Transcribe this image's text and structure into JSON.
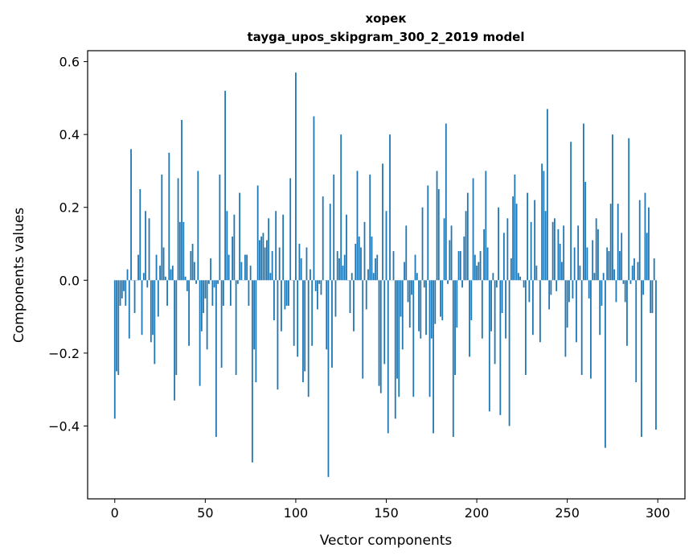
{
  "chart_data": {
    "type": "bar",
    "title": "хорек",
    "subtitle": "tayga_upos_skipgram_300_2_2019 model",
    "xlabel": "Vector components",
    "ylabel": "Components values",
    "xlim": [
      -15,
      315
    ],
    "ylim": [
      -0.6,
      0.63
    ],
    "xticks": [
      0,
      50,
      100,
      150,
      200,
      250,
      300
    ],
    "xtick_labels": [
      "0",
      "50",
      "100",
      "150",
      "200",
      "250",
      "300"
    ],
    "yticks": [
      -0.4,
      -0.2,
      0.0,
      0.2,
      0.4,
      0.6
    ],
    "ytick_labels": [
      "−0.4",
      "−0.2",
      "0.0",
      "0.2",
      "0.4",
      "0.6"
    ],
    "grid": false,
    "bar_color": "#1f77b4",
    "values": [
      -0.38,
      -0.25,
      -0.26,
      -0.07,
      -0.05,
      -0.03,
      -0.07,
      0.03,
      -0.16,
      0.36,
      -0.0,
      -0.09,
      0.0,
      0.07,
      0.25,
      -0.15,
      0.02,
      0.19,
      -0.02,
      0.17,
      -0.17,
      -0.15,
      -0.23,
      0.07,
      -0.1,
      0.04,
      0.29,
      0.09,
      0.01,
      -0.07,
      0.35,
      0.03,
      0.04,
      -0.33,
      -0.26,
      0.28,
      0.16,
      0.44,
      0.16,
      0.01,
      -0.03,
      -0.18,
      0.08,
      0.1,
      0.05,
      -0.01,
      0.3,
      -0.29,
      -0.14,
      -0.09,
      -0.05,
      -0.19,
      -0.01,
      0.06,
      -0.07,
      -0.02,
      -0.43,
      -0.01,
      0.29,
      -0.24,
      -0.07,
      0.52,
      0.19,
      0.07,
      -0.07,
      0.12,
      0.18,
      -0.26,
      -0.01,
      0.24,
      0.05,
      0.0,
      0.07,
      0.07,
      -0.07,
      0.04,
      -0.5,
      -0.19,
      -0.28,
      0.26,
      0.11,
      0.12,
      0.13,
      0.09,
      0.11,
      0.17,
      0.02,
      0.08,
      -0.11,
      0.19,
      -0.3,
      0.09,
      -0.14,
      0.18,
      -0.08,
      -0.07,
      -0.07,
      0.28,
      0.0,
      -0.18,
      0.57,
      -0.21,
      0.1,
      0.06,
      -0.28,
      -0.25,
      0.09,
      -0.32,
      0.03,
      -0.18,
      0.45,
      -0.03,
      -0.08,
      -0.01,
      -0.04,
      0.23,
      -0.0,
      -0.19,
      -0.54,
      0.21,
      -0.24,
      0.29,
      -0.1,
      0.08,
      0.06,
      0.4,
      0.04,
      0.07,
      0.18,
      0.0,
      -0.09,
      0.02,
      -0.14,
      0.1,
      0.3,
      0.12,
      0.09,
      -0.27,
      0.16,
      -0.08,
      0.03,
      0.29,
      0.12,
      0.02,
      0.06,
      0.07,
      -0.29,
      -0.31,
      0.32,
      -0.23,
      0.19,
      -0.42,
      0.4,
      -0.0,
      0.08,
      -0.38,
      -0.27,
      -0.32,
      -0.1,
      -0.19,
      0.05,
      0.15,
      -0.06,
      -0.13,
      -0.04,
      -0.32,
      0.07,
      0.02,
      -0.14,
      -0.16,
      0.2,
      -0.02,
      -0.15,
      0.26,
      -0.32,
      -0.16,
      -0.42,
      -0.12,
      0.3,
      0.25,
      -0.1,
      -0.11,
      0.17,
      0.43,
      -0.01,
      0.11,
      0.15,
      -0.43,
      -0.26,
      -0.13,
      0.08,
      0.08,
      -0.02,
      0.12,
      0.19,
      0.24,
      -0.21,
      -0.11,
      0.28,
      0.07,
      0.04,
      0.05,
      0.08,
      -0.16,
      0.14,
      0.3,
      0.09,
      -0.36,
      -0.14,
      0.02,
      -0.23,
      -0.02,
      0.2,
      -0.37,
      -0.09,
      0.13,
      -0.16,
      0.17,
      -0.4,
      0.06,
      0.23,
      0.29,
      0.21,
      0.02,
      0.01,
      0.0,
      -0.02,
      -0.26,
      0.24,
      -0.06,
      0.16,
      -0.15,
      0.22,
      0.04,
      0.0,
      -0.17,
      0.32,
      0.3,
      0.19,
      0.47,
      -0.08,
      -0.04,
      0.16,
      0.17,
      -0.03,
      0.14,
      0.1,
      0.05,
      0.15,
      -0.21,
      -0.13,
      -0.06,
      0.38,
      -0.05,
      0.09,
      -0.17,
      0.15,
      0.04,
      -0.26,
      0.43,
      0.27,
      0.09,
      -0.05,
      -0.27,
      0.11,
      0.02,
      0.17,
      0.14,
      -0.15,
      -0.07,
      0.02,
      -0.46,
      0.09,
      0.08,
      0.21,
      0.4,
      0.03,
      -0.06,
      0.21,
      0.08,
      0.13,
      -0.01,
      -0.06,
      -0.18,
      0.39,
      -0.01,
      0.04,
      0.06,
      -0.28,
      0.05,
      0.22,
      -0.43,
      -0.04,
      0.24,
      0.13,
      0.2,
      -0.09,
      -0.09,
      0.06,
      -0.41
    ]
  }
}
